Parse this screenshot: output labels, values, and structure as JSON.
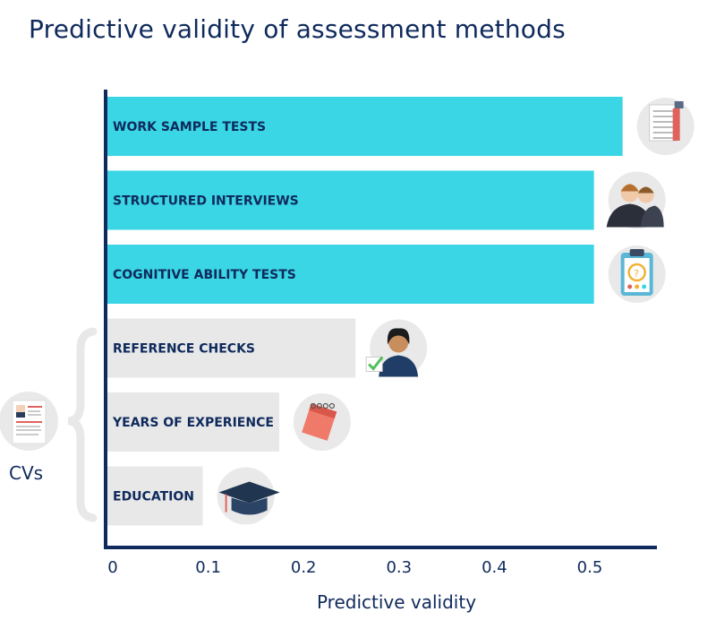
{
  "chart_data": {
    "type": "bar",
    "orientation": "horizontal",
    "title": "Predictive validity of assessment methods",
    "xlabel": "Predictive validity",
    "ylabel": "",
    "xlim": [
      0,
      0.55
    ],
    "xticks": [
      0,
      0.1,
      0.2,
      0.3,
      0.4,
      0.5
    ],
    "xtick_labels": [
      "0",
      "0.1",
      "0.2",
      "0.3",
      "0.4",
      "0.5"
    ],
    "grid": false,
    "categories": [
      "WORK SAMPLE TESTS",
      "STRUCTURED INTERVIEWS",
      "COGNITIVE ABILITY TESTS",
      "REFERENCE CHECKS",
      "YEARS OF EXPERIENCE",
      "EDUCATION"
    ],
    "values": [
      0.54,
      0.51,
      0.51,
      0.26,
      0.18,
      0.1
    ],
    "bar_colors": [
      "#3ad6e5",
      "#3ad6e5",
      "#3ad6e5",
      "#e8e8e8",
      "#e8e8e8",
      "#e8e8e8"
    ],
    "icons": [
      "document-icon",
      "interview-people-icon",
      "clipboard-stopwatch-icon",
      "woman-checkmark-icon",
      "calendar-icon",
      "graduation-cap-icon"
    ],
    "group_annotation": {
      "label": "CVs",
      "icon": "resume-icon",
      "bracket_covers": [
        "REFERENCE CHECKS",
        "YEARS OF EXPERIENCE",
        "EDUCATION"
      ]
    }
  },
  "colors": {
    "title": "#0f2a5c",
    "axis": "#0f2a5c",
    "highlight_bar": "#3ad6e5",
    "muted_bar": "#e8e8e8",
    "icon_circle": "#e9e9e9"
  }
}
